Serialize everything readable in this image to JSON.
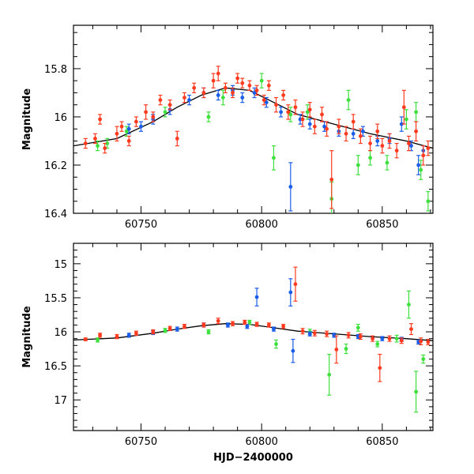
{
  "chart_data": [
    {
      "type": "scatter",
      "ylabel": "Magnitude",
      "xlabel": "",
      "xlim": [
        60722,
        60871
      ],
      "ylim": [
        16.4,
        15.62
      ],
      "y_inverted": true,
      "xticks": [
        60750,
        60800,
        60850
      ],
      "xtick_labels": [
        "60750",
        "60800",
        "60850"
      ],
      "yticks": [
        15.8,
        16,
        16.2,
        16.4
      ],
      "ytick_labels": [
        "15.8",
        "16",
        "16.2",
        "16.4"
      ],
      "grid": false,
      "series_colors": {
        "red": "#ff3a1f",
        "blue": "#1a5de8",
        "green": "#3ee03e"
      },
      "model_curve": [
        [
          60722,
          16.12
        ],
        [
          60740,
          16.09
        ],
        [
          60755,
          16.02
        ],
        [
          60765,
          15.96
        ],
        [
          60775,
          15.91
        ],
        [
          60785,
          15.88
        ],
        [
          60795,
          15.89
        ],
        [
          60805,
          15.94
        ],
        [
          60815,
          15.99
        ],
        [
          60830,
          16.03
        ],
        [
          60845,
          16.07
        ],
        [
          60860,
          16.1
        ],
        [
          60871,
          16.13
        ]
      ],
      "points": {
        "red": [
          [
            60727,
            16.11,
            0.02
          ],
          [
            60731,
            16.09,
            0.02
          ],
          [
            60733,
            16.01,
            0.02
          ],
          [
            60735,
            16.13,
            0.02
          ],
          [
            60740,
            16.07,
            0.03
          ],
          [
            60742,
            16.04,
            0.02
          ],
          [
            60745,
            16.1,
            0.02
          ],
          [
            60748,
            16.02,
            0.02
          ],
          [
            60752,
            15.98,
            0.03
          ],
          [
            60755,
            16.0,
            0.02
          ],
          [
            60758,
            15.93,
            0.02
          ],
          [
            60762,
            15.95,
            0.02
          ],
          [
            60765,
            16.09,
            0.03
          ],
          [
            60768,
            15.92,
            0.02
          ],
          [
            60772,
            15.88,
            0.02
          ],
          [
            60776,
            15.9,
            0.02
          ],
          [
            60780,
            15.85,
            0.03
          ],
          [
            60782,
            15.82,
            0.03
          ],
          [
            60785,
            15.88,
            0.02
          ],
          [
            60788,
            15.9,
            0.02
          ],
          [
            60790,
            15.84,
            0.02
          ],
          [
            60792,
            15.86,
            0.02
          ],
          [
            60795,
            15.87,
            0.02
          ],
          [
            60798,
            15.89,
            0.02
          ],
          [
            60801,
            15.93,
            0.02
          ],
          [
            60803,
            15.87,
            0.02
          ],
          [
            60806,
            15.95,
            0.03
          ],
          [
            60809,
            15.91,
            0.02
          ],
          [
            60811,
            15.98,
            0.03
          ],
          [
            60814,
            15.96,
            0.03
          ],
          [
            60817,
            16.01,
            0.03
          ],
          [
            60820,
            15.97,
            0.03
          ],
          [
            60822,
            16.04,
            0.03
          ],
          [
            60825,
            15.99,
            0.03
          ],
          [
            60827,
            16.05,
            0.03
          ],
          [
            60829,
            16.26,
            0.12
          ],
          [
            60832,
            16.04,
            0.03
          ],
          [
            60835,
            16.07,
            0.03
          ],
          [
            60838,
            16.02,
            0.03
          ],
          [
            60841,
            16.08,
            0.03
          ],
          [
            60845,
            16.11,
            0.03
          ],
          [
            60848,
            16.06,
            0.03
          ],
          [
            60850,
            16.12,
            0.03
          ],
          [
            60853,
            16.1,
            0.03
          ],
          [
            60856,
            16.14,
            0.03
          ],
          [
            60859,
            15.96,
            0.07
          ],
          [
            60861,
            16.11,
            0.03
          ],
          [
            60864,
            16.06,
            0.04
          ],
          [
            60867,
            16.16,
            0.04
          ],
          [
            60869,
            16.13,
            0.03
          ]
        ],
        "blue": [
          [
            60745,
            16.05,
            0.02
          ],
          [
            60750,
            16.04,
            0.02
          ],
          [
            60755,
            16.01,
            0.02
          ],
          [
            60762,
            15.97,
            0.02
          ],
          [
            60770,
            15.93,
            0.02
          ],
          [
            60776,
            15.9,
            0.02
          ],
          [
            60782,
            15.91,
            0.02
          ],
          [
            60788,
            15.89,
            0.02
          ],
          [
            60792,
            15.92,
            0.02
          ],
          [
            60797,
            15.9,
            0.02
          ],
          [
            60802,
            15.94,
            0.02
          ],
          [
            60808,
            15.98,
            0.02
          ],
          [
            60812,
            16.29,
            0.1
          ],
          [
            60816,
            16.01,
            0.02
          ],
          [
            60820,
            16.03,
            0.02
          ],
          [
            60826,
            16.04,
            0.02
          ],
          [
            60832,
            16.06,
            0.02
          ],
          [
            60838,
            16.07,
            0.02
          ],
          [
            60842,
            16.06,
            0.02
          ],
          [
            60848,
            16.1,
            0.02
          ],
          [
            60853,
            16.09,
            0.02
          ],
          [
            60858,
            16.03,
            0.03
          ],
          [
            60862,
            16.12,
            0.02
          ],
          [
            60865,
            16.2,
            0.04
          ],
          [
            60867,
            16.14,
            0.02
          ]
        ],
        "green": [
          [
            60732,
            16.12,
            0.02
          ],
          [
            60736,
            16.11,
            0.02
          ],
          [
            60744,
            16.06,
            0.02
          ],
          [
            60760,
            15.98,
            0.02
          ],
          [
            60778,
            16.0,
            0.02
          ],
          [
            60784,
            15.92,
            0.03
          ],
          [
            60800,
            15.85,
            0.03
          ],
          [
            60805,
            16.17,
            0.05
          ],
          [
            60812,
            15.99,
            0.03
          ],
          [
            60819,
            15.98,
            0.03
          ],
          [
            60829,
            16.34,
            0.07
          ],
          [
            60836,
            15.93,
            0.04
          ],
          [
            60840,
            16.2,
            0.04
          ],
          [
            60845,
            16.17,
            0.03
          ],
          [
            60852,
            16.19,
            0.03
          ],
          [
            60860,
            16.01,
            0.04
          ],
          [
            60864,
            15.98,
            0.04
          ],
          [
            60866,
            16.22,
            0.04
          ],
          [
            60869,
            16.35,
            0.04
          ]
        ]
      }
    },
    {
      "type": "scatter",
      "ylabel": "Magnitude",
      "xlabel": "HJD−2400000",
      "xlim": [
        60722,
        60871
      ],
      "ylim": [
        17.45,
        14.7
      ],
      "y_inverted": true,
      "xticks": [
        60750,
        60800,
        60850
      ],
      "xtick_labels": [
        "60750",
        "60800",
        "60850"
      ],
      "yticks": [
        15,
        15.5,
        16,
        16.5,
        17
      ],
      "ytick_labels": [
        "15",
        "15.5",
        "16",
        "16.5",
        "17"
      ],
      "grid": false,
      "series_colors": {
        "red": "#ff3a1f",
        "blue": "#1a5de8",
        "green": "#3ee03e"
      },
      "model_curve": [
        [
          60722,
          16.12
        ],
        [
          60740,
          16.09
        ],
        [
          60755,
          16.02
        ],
        [
          60765,
          15.96
        ],
        [
          60775,
          15.91
        ],
        [
          60785,
          15.88
        ],
        [
          60795,
          15.89
        ],
        [
          60805,
          15.94
        ],
        [
          60815,
          15.99
        ],
        [
          60830,
          16.03
        ],
        [
          60845,
          16.07
        ],
        [
          60860,
          16.1
        ],
        [
          60871,
          16.13
        ]
      ],
      "points": {
        "red": [
          [
            60727,
            16.11,
            0.02
          ],
          [
            60733,
            16.05,
            0.03
          ],
          [
            60740,
            16.07,
            0.03
          ],
          [
            60748,
            16.02,
            0.03
          ],
          [
            60755,
            16.0,
            0.03
          ],
          [
            60762,
            15.95,
            0.03
          ],
          [
            60768,
            15.92,
            0.03
          ],
          [
            60776,
            15.9,
            0.03
          ],
          [
            60782,
            15.84,
            0.04
          ],
          [
            60788,
            15.88,
            0.03
          ],
          [
            60793,
            15.86,
            0.03
          ],
          [
            60798,
            15.89,
            0.03
          ],
          [
            60803,
            15.9,
            0.03
          ],
          [
            60809,
            15.92,
            0.03
          ],
          [
            60814,
            15.3,
            0.25
          ],
          [
            60817,
            15.99,
            0.04
          ],
          [
            60822,
            16.02,
            0.04
          ],
          [
            60827,
            16.03,
            0.04
          ],
          [
            60831,
            16.26,
            0.2
          ],
          [
            60836,
            16.05,
            0.04
          ],
          [
            60841,
            16.07,
            0.04
          ],
          [
            60846,
            16.1,
            0.04
          ],
          [
            60849,
            16.53,
            0.2
          ],
          [
            60853,
            16.1,
            0.04
          ],
          [
            60858,
            16.13,
            0.04
          ],
          [
            60862,
            15.96,
            0.08
          ],
          [
            60866,
            16.14,
            0.05
          ],
          [
            60869,
            16.15,
            0.04
          ]
        ],
        "blue": [
          [
            60745,
            16.05,
            0.03
          ],
          [
            60755,
            16.01,
            0.03
          ],
          [
            60765,
            15.96,
            0.03
          ],
          [
            60776,
            15.9,
            0.03
          ],
          [
            60786,
            15.9,
            0.03
          ],
          [
            60794,
            15.92,
            0.03
          ],
          [
            60798,
            15.49,
            0.13
          ],
          [
            60805,
            15.96,
            0.03
          ],
          [
            60812,
            15.42,
            0.2
          ],
          [
            60813,
            16.28,
            0.17
          ],
          [
            60820,
            16.03,
            0.03
          ],
          [
            60830,
            16.05,
            0.03
          ],
          [
            60840,
            16.07,
            0.03
          ],
          [
            60850,
            16.1,
            0.03
          ],
          [
            60858,
            16.11,
            0.03
          ],
          [
            60865,
            16.15,
            0.03
          ]
        ],
        "green": [
          [
            60732,
            16.12,
            0.03
          ],
          [
            60760,
            15.98,
            0.03
          ],
          [
            60778,
            16.0,
            0.03
          ],
          [
            60795,
            15.86,
            0.03
          ],
          [
            60806,
            16.18,
            0.06
          ],
          [
            60820,
            16.0,
            0.04
          ],
          [
            60828,
            16.63,
            0.3
          ],
          [
            60835,
            16.25,
            0.07
          ],
          [
            60840,
            15.94,
            0.05
          ],
          [
            60848,
            16.18,
            0.04
          ],
          [
            60856,
            16.1,
            0.05
          ],
          [
            60861,
            15.6,
            0.2
          ],
          [
            60864,
            16.88,
            0.3
          ],
          [
            60867,
            16.4,
            0.06
          ]
        ]
      }
    }
  ]
}
